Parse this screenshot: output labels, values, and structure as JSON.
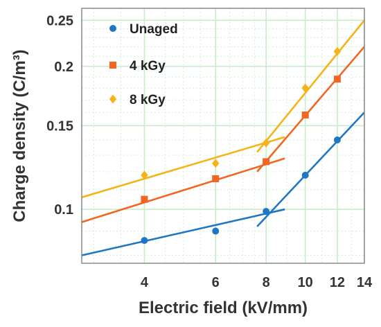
{
  "chart_data": {
    "type": "scatter",
    "title": "",
    "xlabel": "Electric field (kV/mm)",
    "ylabel": "Charge density (C/m³)",
    "x_scale": "log",
    "y_scale": "log",
    "xlim": [
      2.8,
      14
    ],
    "ylim": [
      0.077,
      0.265
    ],
    "x_ticks": [
      4,
      6,
      8,
      10,
      12,
      14
    ],
    "y_ticks": [
      0.1,
      0.15,
      0.2,
      0.25
    ],
    "x_tick_labels": [
      "4",
      "6",
      "8",
      "10",
      "12",
      "14"
    ],
    "y_tick_labels": [
      "0.1",
      "0.15",
      "0.2",
      "0.25"
    ],
    "grid": true,
    "grid_color": "#c9ecc9",
    "legend_position": "top-left",
    "series": [
      {
        "name": "Unaged",
        "marker": "circle",
        "color": "#1f77c4",
        "x": [
          4,
          6,
          8,
          10,
          12
        ],
        "y": [
          0.086,
          0.09,
          0.099,
          0.118,
          0.14
        ],
        "fits": [
          {
            "x": [
              2.8,
              8.9
            ],
            "y": [
              0.08,
              0.1
            ]
          },
          {
            "x": [
              7.6,
              14
            ],
            "y": [
              0.092,
              0.16
            ]
          }
        ]
      },
      {
        "name": "4 kGy",
        "marker": "square",
        "color": "#f26522",
        "x": [
          4,
          6,
          8,
          10,
          12
        ],
        "y": [
          0.105,
          0.116,
          0.126,
          0.158,
          0.188
        ],
        "fits": [
          {
            "x": [
              2.8,
              8.9
            ],
            "y": [
              0.094,
              0.128
            ]
          },
          {
            "x": [
              7.6,
              14
            ],
            "y": [
              0.12,
              0.22
            ]
          }
        ]
      },
      {
        "name": "8 kGy",
        "marker": "diamond",
        "color": "#f5b317",
        "x": [
          4,
          6,
          8,
          10,
          12
        ],
        "y": [
          0.118,
          0.125,
          0.138,
          0.18,
          0.215
        ],
        "fits": [
          {
            "x": [
              2.8,
              8.9
            ],
            "y": [
              0.106,
              0.142
            ]
          },
          {
            "x": [
              7.6,
              14
            ],
            "y": [
              0.132,
              0.25
            ]
          }
        ]
      }
    ]
  }
}
